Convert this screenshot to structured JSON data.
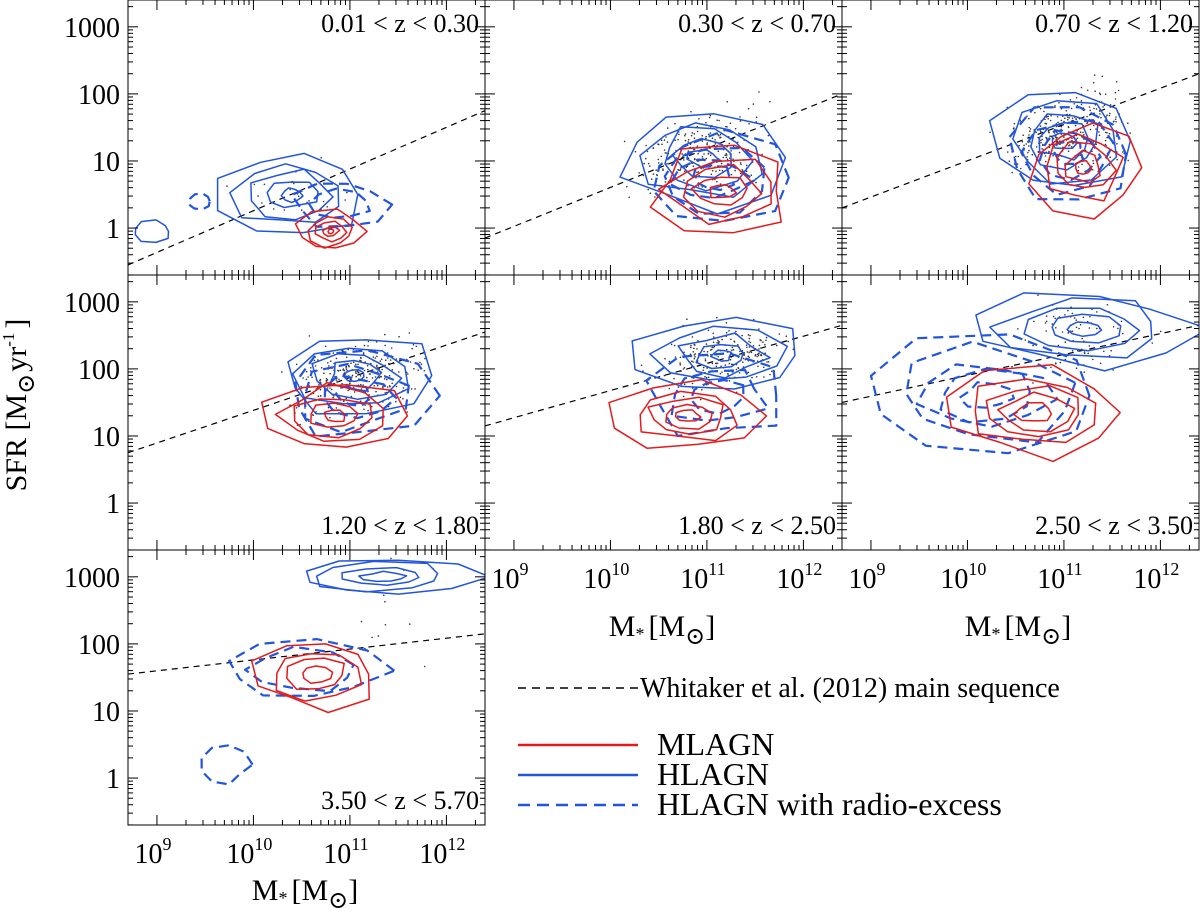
{
  "figure": {
    "ylabel_main": "SFR [M",
    "ylabel_tail": "yr",
    "ylabel_exp": "-1",
    "ylabel_close": "]",
    "xlabel_main": "M",
    "xlabel_sub": "*",
    "xlabel_unit": "[M",
    "xlabel_close": "]"
  },
  "axes": {
    "xlim_log": [
      8.7,
      12.4
    ],
    "ylim_log": [
      -0.7,
      3.4
    ],
    "x_ticks": [
      {
        "base": "10",
        "exp": "9",
        "v": 9
      },
      {
        "base": "10",
        "exp": "10",
        "v": 10
      },
      {
        "base": "10",
        "exp": "11",
        "v": 11
      },
      {
        "base": "10",
        "exp": "12",
        "v": 12
      }
    ],
    "y_ticks": [
      {
        "label": "1",
        "v": 0
      },
      {
        "label": "10",
        "v": 1
      },
      {
        "label": "100",
        "v": 2
      },
      {
        "label": "1000",
        "v": 3
      }
    ]
  },
  "legend": {
    "main_sequence": "Whitaker et al. (2012) main sequence",
    "mlagn": "MLAGN",
    "hlagn": "HLAGN",
    "hlagn_radio": "HLAGN with radio-excess"
  },
  "colors": {
    "mlagn": "#e41a1c",
    "hlagn": "#2255dd",
    "ms": "#000000",
    "points": "#333333"
  },
  "chart_data": [
    {
      "type": "scatter",
      "panel": 1,
      "title": "0.01 < z < 0.30",
      "main_sequence": [
        [
          8.7,
          -0.55
        ],
        [
          12.4,
          1.75
        ]
      ],
      "contours": {
        "mlagn": [
          {
            "x": 10.8,
            "y": -0.05,
            "levels": [
              [
                0.35,
                0.3
              ],
              [
                0.25,
                0.22
              ],
              [
                0.16,
                0.14
              ],
              [
                0.08,
                0.07
              ],
              [
                0.03,
                0.03
              ]
            ]
          }
        ],
        "hlagn": [
          {
            "x": 10.4,
            "y": 0.5,
            "levels": [
              [
                0.7,
                0.6
              ],
              [
                0.55,
                0.48
              ],
              [
                0.4,
                0.34
              ],
              [
                0.25,
                0.2
              ],
              [
                0.1,
                0.1
              ]
            ]
          },
          {
            "x": 8.95,
            "y": -0.05,
            "levels": [
              [
                0.2,
                0.15
              ]
            ]
          }
        ],
        "hlagn_radio": [
          {
            "x": 10.9,
            "y": 0.35,
            "levels": [
              [
                0.45,
                0.35
              ],
              [
                0.3,
                0.22
              ]
            ]
          },
          {
            "x": 9.45,
            "y": 0.4,
            "levels": [
              [
                0.12,
                0.12
              ]
            ]
          }
        ]
      },
      "points": 25
    },
    {
      "type": "scatter",
      "panel": 2,
      "title": "0.30 < z < 0.70",
      "main_sequence": [
        [
          8.7,
          -0.15
        ],
        [
          12.4,
          2.0
        ]
      ],
      "contours": {
        "mlagn": [
          {
            "x": 11.15,
            "y": 0.55,
            "levels": [
              [
                0.7,
                0.62
              ],
              [
                0.55,
                0.48
              ],
              [
                0.4,
                0.35
              ],
              [
                0.27,
                0.22
              ],
              [
                0.14,
                0.11
              ]
            ]
          }
        ],
        "hlagn": [
          {
            "x": 10.95,
            "y": 1.05,
            "levels": [
              [
                0.8,
                0.75
              ],
              [
                0.62,
                0.58
              ],
              [
                0.45,
                0.42
              ],
              [
                0.3,
                0.27
              ],
              [
                0.15,
                0.13
              ]
            ]
          }
        ],
        "hlagn_radio": [
          {
            "x": 11.05,
            "y": 0.75,
            "levels": [
              [
                0.72,
                0.65
              ],
              [
                0.55,
                0.5
              ],
              [
                0.38,
                0.32
              ],
              [
                0.22,
                0.18
              ]
            ]
          }
        ]
      },
      "points": 260
    },
    {
      "type": "scatter",
      "panel": 3,
      "title": "0.70 < z < 1.20",
      "main_sequence": [
        [
          8.7,
          0.3
        ],
        [
          12.4,
          2.3
        ]
      ],
      "contours": {
        "mlagn": [
          {
            "x": 11.2,
            "y": 0.9,
            "levels": [
              [
                0.55,
                0.65
              ],
              [
                0.42,
                0.5
              ],
              [
                0.3,
                0.36
              ],
              [
                0.18,
                0.22
              ],
              [
                0.08,
                0.1
              ]
            ]
          }
        ],
        "hlagn": [
          {
            "x": 11.0,
            "y": 1.3,
            "levels": [
              [
                0.7,
                0.75
              ],
              [
                0.55,
                0.58
              ],
              [
                0.4,
                0.42
              ],
              [
                0.25,
                0.27
              ],
              [
                0.12,
                0.12
              ]
            ]
          }
        ],
        "hlagn_radio": [
          {
            "x": 11.05,
            "y": 1.1,
            "levels": [
              [
                0.62,
                0.7
              ],
              [
                0.46,
                0.52
              ],
              [
                0.3,
                0.34
              ],
              [
                0.16,
                0.18
              ]
            ]
          }
        ]
      },
      "points": 320
    },
    {
      "type": "scatter",
      "panel": 4,
      "title": "1.20 < z < 1.80",
      "main_sequence": [
        [
          8.7,
          0.75
        ],
        [
          12.4,
          2.55
        ]
      ],
      "contours": {
        "mlagn": [
          {
            "x": 10.85,
            "y": 1.3,
            "levels": [
              [
                0.75,
                0.55
              ],
              [
                0.58,
                0.42
              ],
              [
                0.42,
                0.3
              ],
              [
                0.27,
                0.19
              ],
              [
                0.12,
                0.09
              ]
            ]
          }
        ],
        "hlagn": [
          {
            "x": 11.05,
            "y": 1.9,
            "levels": [
              [
                0.8,
                0.65
              ],
              [
                0.6,
                0.5
              ],
              [
                0.42,
                0.35
              ],
              [
                0.26,
                0.22
              ],
              [
                0.11,
                0.1
              ]
            ]
          }
        ],
        "hlagn_radio": [
          {
            "x": 11.05,
            "y": 1.6,
            "levels": [
              [
                0.75,
                0.65
              ],
              [
                0.55,
                0.48
              ],
              [
                0.36,
                0.3
              ],
              [
                0.18,
                0.15
              ]
            ]
          }
        ]
      },
      "points": 300
    },
    {
      "type": "scatter",
      "panel": 5,
      "title": "1.80 < z < 2.50",
      "main_sequence": [
        [
          8.7,
          1.15
        ],
        [
          12.4,
          2.65
        ]
      ],
      "contours": {
        "mlagn": [
          {
            "x": 10.8,
            "y": 1.3,
            "levels": [
              [
                0.75,
                0.5
              ],
              [
                0.58,
                0.38
              ],
              [
                0.42,
                0.28
              ],
              [
                0.27,
                0.18
              ],
              [
                0.12,
                0.08
              ]
            ]
          }
        ],
        "hlagn": [
          {
            "x": 11.15,
            "y": 2.2,
            "levels": [
              [
                0.85,
                0.55
              ],
              [
                0.65,
                0.42
              ],
              [
                0.45,
                0.3
              ],
              [
                0.28,
                0.18
              ],
              [
                0.1,
                0.08
              ]
            ]
          }
        ],
        "hlagn_radio": [
          {
            "x": 11.1,
            "y": 1.6,
            "levels": [
              [
                0.7,
                0.6
              ],
              [
                0.5,
                0.42
              ],
              [
                0.3,
                0.25
              ]
            ]
          }
        ]
      },
      "points": 230
    },
    {
      "type": "scatter",
      "panel": 6,
      "title": "2.50 < z < 3.50",
      "main_sequence": [
        [
          8.7,
          1.5
        ],
        [
          12.4,
          2.65
        ]
      ],
      "contours": {
        "mlagn": [
          {
            "x": 10.7,
            "y": 1.35,
            "levels": [
              [
                0.9,
                0.62
              ],
              [
                0.7,
                0.5
              ],
              [
                0.52,
                0.38
              ],
              [
                0.36,
                0.26
              ],
              [
                0.2,
                0.15
              ]
            ]
          }
        ],
        "hlagn": [
          {
            "x": 11.2,
            "y": 2.6,
            "levels": [
              [
                1.1,
                0.55
              ],
              [
                0.85,
                0.42
              ],
              [
                0.6,
                0.3
              ],
              [
                0.38,
                0.2
              ],
              [
                0.18,
                0.1
              ]
            ]
          }
        ],
        "hlagn_radio": [
          {
            "x": 10.2,
            "y": 1.6,
            "levels": [
              [
                1.25,
                0.85
              ],
              [
                1.0,
                0.68
              ],
              [
                0.75,
                0.5
              ],
              [
                0.5,
                0.35
              ],
              [
                0.25,
                0.18
              ]
            ]
          }
        ]
      },
      "points": 90
    },
    {
      "type": "scatter",
      "panel": 7,
      "title": "3.50 < z < 5.70",
      "main_sequence": [
        [
          8.7,
          1.55
        ],
        [
          12.4,
          2.15
        ]
      ],
      "contours": {
        "mlagn": [
          {
            "x": 10.65,
            "y": 1.55,
            "levels": [
              [
                0.62,
                0.5
              ],
              [
                0.46,
                0.36
              ],
              [
                0.3,
                0.24
              ],
              [
                0.15,
                0.12
              ]
            ]
          }
        ],
        "hlagn": [
          {
            "x": 11.35,
            "y": 3.0,
            "levels": [
              [
                0.95,
                0.28
              ],
              [
                0.7,
                0.2
              ],
              [
                0.45,
                0.13
              ],
              [
                0.22,
                0.07
              ]
            ]
          }
        ],
        "hlagn_radio": [
          {
            "x": 10.5,
            "y": 1.6,
            "levels": [
              [
                0.85,
                0.45
              ],
              [
                0.6,
                0.32
              ]
            ]
          },
          {
            "x": 9.7,
            "y": 0.2,
            "levels": [
              [
                0.25,
                0.28
              ]
            ]
          }
        ]
      },
      "points": 12
    }
  ]
}
